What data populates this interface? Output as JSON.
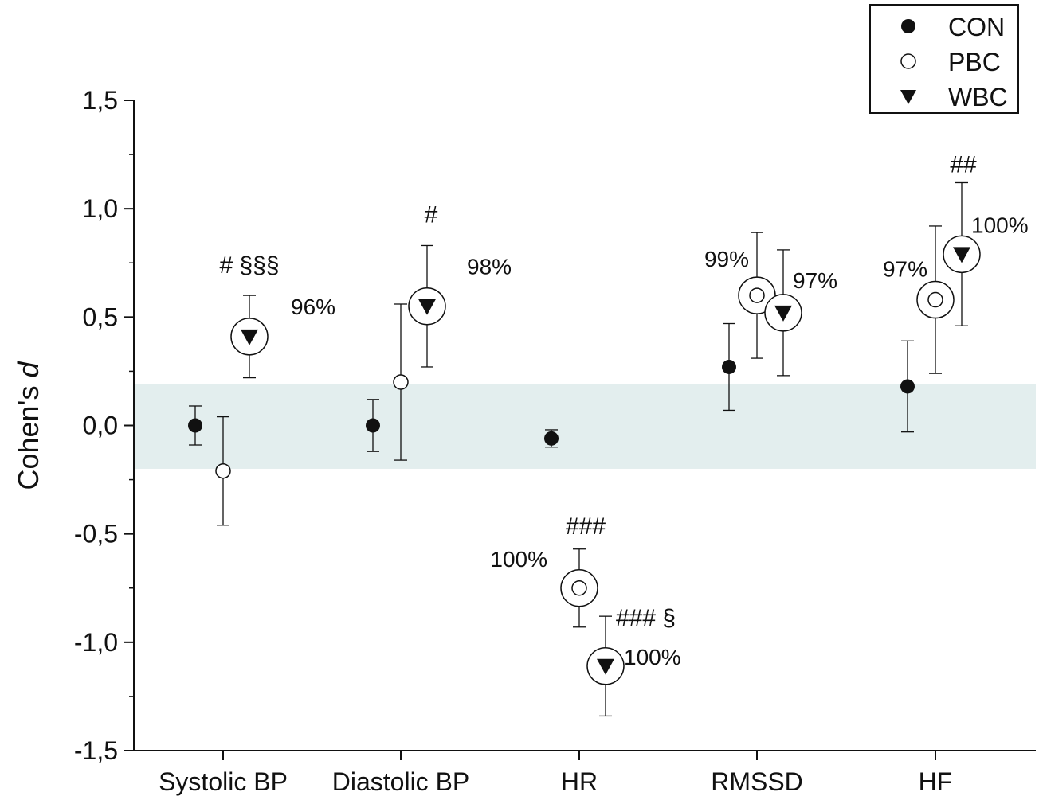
{
  "chart_data": {
    "type": "scatter",
    "title": "",
    "xlabel": "",
    "ylabel_prefix": "Cohen's ",
    "ylabel_italic": "d",
    "ylim": [
      -1.5,
      1.5
    ],
    "yticks": [
      "1,5",
      "1,0",
      "0,5",
      "0,0",
      "-0,5",
      "-1,0",
      "-1,5"
    ],
    "ytick_values": [
      1.5,
      1.0,
      0.5,
      0.0,
      -0.5,
      -1.0,
      -1.5
    ],
    "categories": [
      "Systolic BP",
      "Diastolic BP",
      "HR",
      "RMSSD",
      "HF"
    ],
    "shaded_band": [
      -0.2,
      0.19
    ],
    "band_color": "#e3eeee",
    "legend_position": "top-right",
    "series": [
      {
        "name": "CON",
        "marker": "filled-circle",
        "points": [
          {
            "y": 0.0,
            "lo": -0.09,
            "hi": 0.09
          },
          {
            "y": 0.0,
            "lo": -0.12,
            "hi": 0.12
          },
          {
            "y": -0.06,
            "lo": -0.1,
            "hi": -0.02
          },
          {
            "y": 0.27,
            "lo": 0.07,
            "hi": 0.47
          },
          {
            "y": 0.18,
            "lo": -0.03,
            "hi": 0.39
          }
        ]
      },
      {
        "name": "PBC",
        "marker": "open-circle",
        "points": [
          {
            "y": -0.21,
            "lo": -0.46,
            "hi": 0.04
          },
          {
            "y": 0.2,
            "lo": -0.16,
            "hi": 0.56
          },
          {
            "y": -0.75,
            "lo": -0.93,
            "hi": -0.57,
            "ring": true,
            "pct": "100%",
            "sig": "###"
          },
          {
            "y": 0.6,
            "lo": 0.31,
            "hi": 0.89,
            "ring": true,
            "pct": "99%"
          },
          {
            "y": 0.58,
            "lo": 0.24,
            "hi": 0.92,
            "ring": true,
            "pct": "97%"
          }
        ]
      },
      {
        "name": "WBC",
        "marker": "down-triangle",
        "points": [
          {
            "y": 0.41,
            "lo": 0.22,
            "hi": 0.6,
            "ring": true,
            "pct": "96%",
            "sig": "# §§§"
          },
          {
            "y": 0.55,
            "lo": 0.27,
            "hi": 0.83,
            "ring": true,
            "pct": "98%",
            "sig": "#"
          },
          {
            "y": -1.11,
            "lo": -1.34,
            "hi": -0.88,
            "ring": true,
            "pct": "100%",
            "sig": "### §"
          },
          {
            "y": 0.52,
            "lo": 0.23,
            "hi": 0.81,
            "ring": true,
            "pct": "97%"
          },
          {
            "y": 0.79,
            "lo": 0.46,
            "hi": 1.12,
            "ring": true,
            "pct": "100%",
            "sig": "##"
          }
        ]
      }
    ]
  }
}
